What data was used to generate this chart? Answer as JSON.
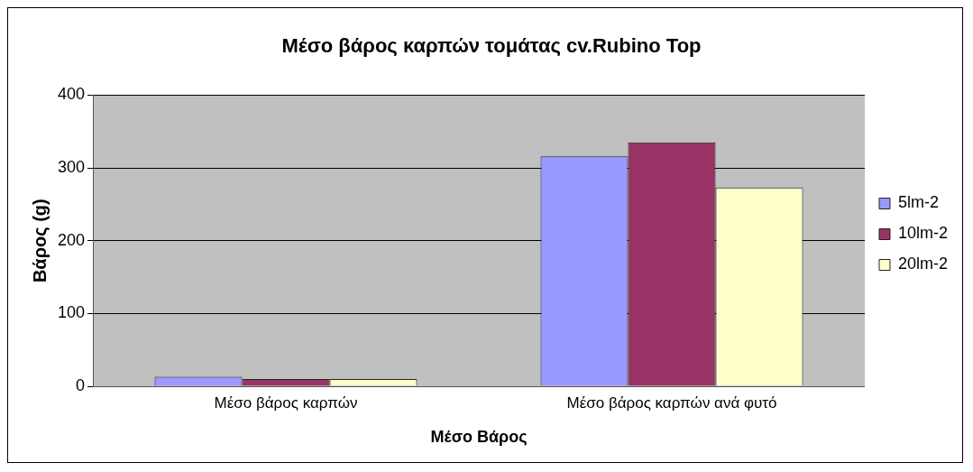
{
  "chart_data": {
    "type": "bar",
    "title": "Μέσο βάρος καρπών τομάτας cv.Rubino Top",
    "xlabel": "Μέσο Βάρος",
    "ylabel": "Βάρος (g)",
    "categories": [
      "Μέσο βάρος καρπών",
      "Μέσο βάρος καρπών ανά φυτό"
    ],
    "series": [
      {
        "name": "5lm-2",
        "color": "#9999ff",
        "values": [
          13,
          316
        ]
      },
      {
        "name": "10lm-2",
        "color": "#993366",
        "values": [
          10,
          335
        ]
      },
      {
        "name": "20lm-2",
        "color": "#ffffcc",
        "values": [
          10,
          273
        ]
      }
    ],
    "ylim": [
      0,
      400
    ],
    "yticks": [
      0,
      100,
      200,
      300,
      400
    ],
    "grid": "y",
    "legend": "right"
  }
}
